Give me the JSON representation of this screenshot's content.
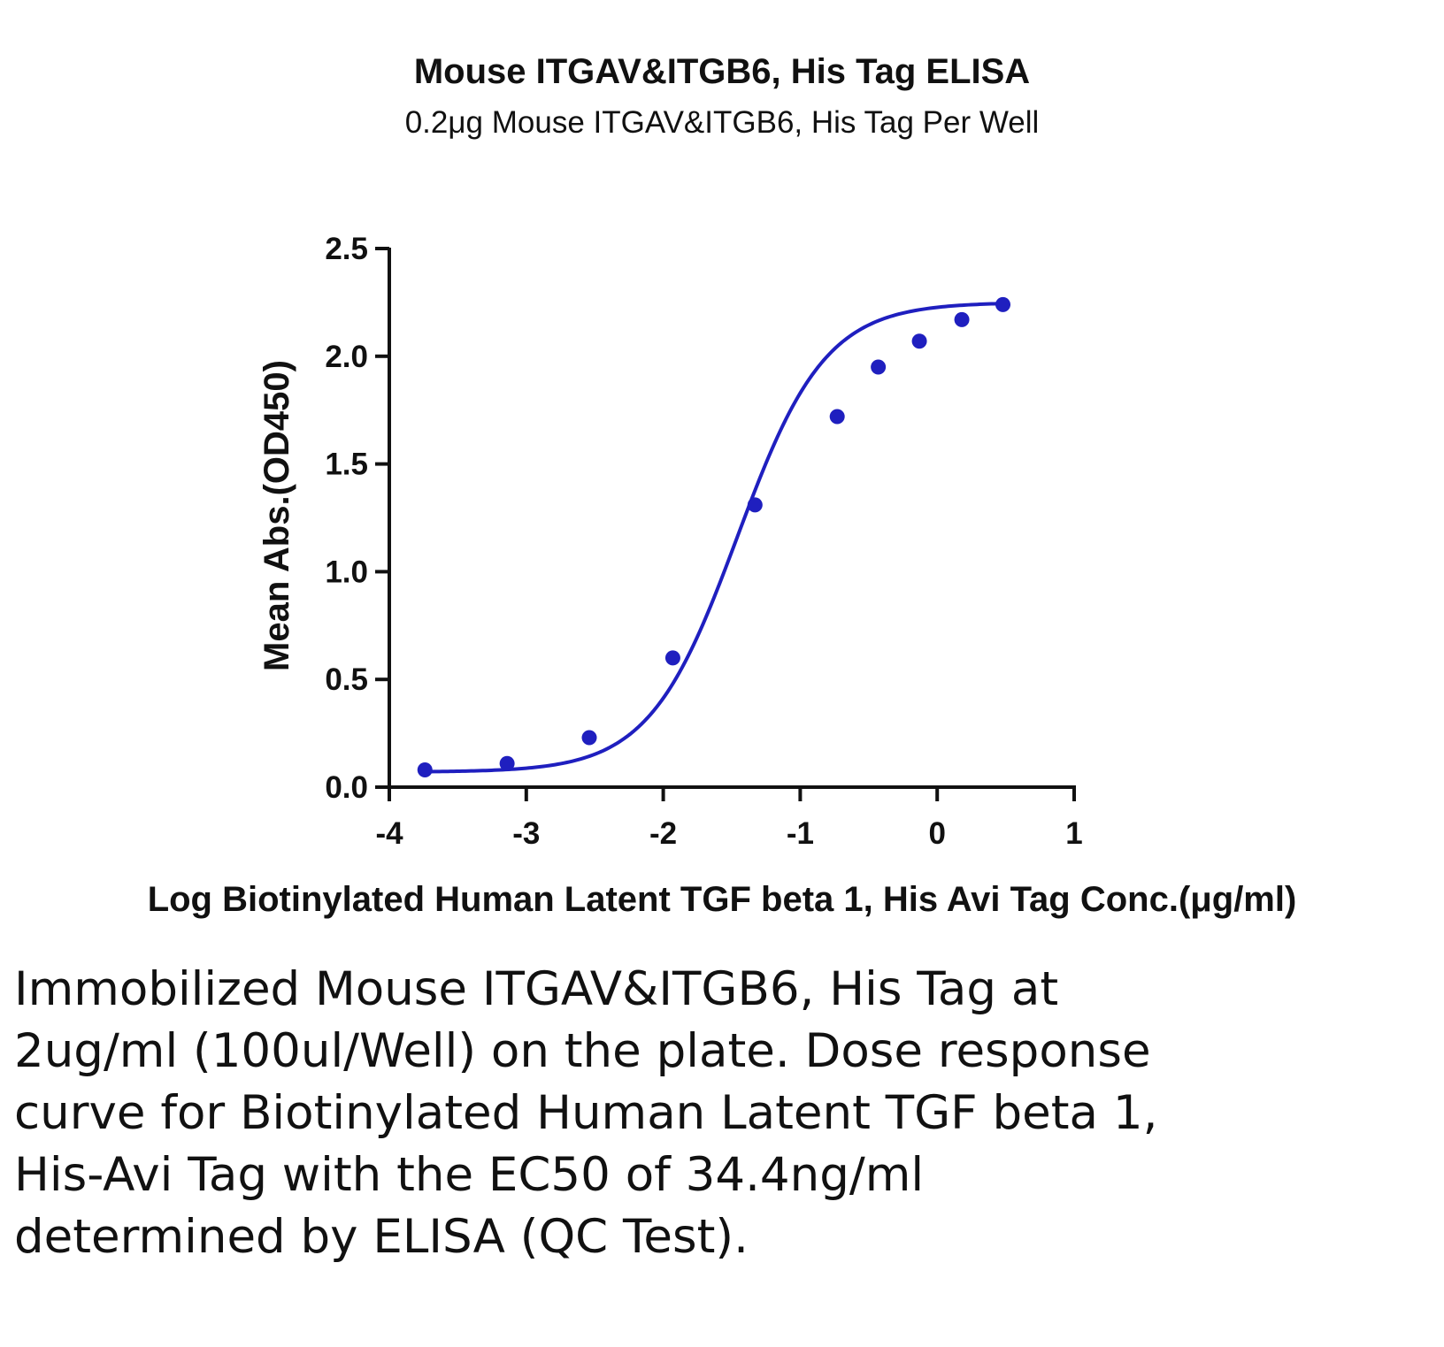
{
  "colors": {
    "series": "#1f1fbf",
    "axis": "#111111",
    "text": "#111111"
  },
  "chart_data": {
    "type": "line",
    "title": "Mouse ITGAV&ITGB6, His Tag ELISA",
    "subtitle": "0.2μg Mouse ITGAV&ITGB6, His Tag Per Well",
    "xlabel": "Log Biotinylated Human Latent TGF beta 1, His Avi Tag Conc.(μg/ml)",
    "ylabel": "Mean Abs.(OD450)",
    "xlim": [
      -4,
      1
    ],
    "ylim": [
      0,
      2.5
    ],
    "xticks": [
      "-4",
      "-3",
      "-2",
      "-1",
      "0",
      "1"
    ],
    "yticks": [
      "0.0",
      "0.5",
      "1.0",
      "1.5",
      "2.0",
      "2.5"
    ],
    "grid": false,
    "legend": "none",
    "series": [
      {
        "x": [
          -3.74,
          -3.14,
          -2.54,
          -1.93,
          -1.33,
          -0.73,
          -0.43,
          -0.13,
          0.18,
          0.48
        ],
        "y": [
          0.08,
          0.11,
          0.23,
          0.6,
          1.31,
          1.72,
          1.95,
          2.07,
          2.17,
          2.24
        ]
      }
    ],
    "fit_curve": {
      "model": "4PL",
      "bottom": 0.07,
      "top": 2.25,
      "log_ec50": -1.46,
      "hill": 1.35
    }
  },
  "caption": "Immobilized Mouse ITGAV&ITGB6, His Tag at 2ug/ml (100ul/Well) on the plate. Dose response curve for Biotinylated Human Latent TGF beta 1, His-Avi Tag with the EC50 of 34.4ng/ml determined by ELISA (QC Test)."
}
